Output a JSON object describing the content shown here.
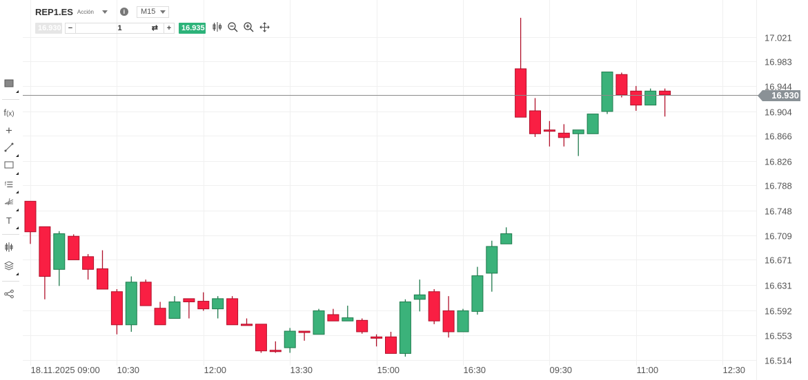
{
  "header": {
    "symbol": "REP1.ES",
    "instrument_type": "Acción",
    "timeframe": "M15"
  },
  "order_bar": {
    "sell_price": "16.930",
    "quantity": "1",
    "buy_price": "16.935",
    "minus": "−",
    "plus": "+"
  },
  "toolbar_icons": [
    "candlestick-type-icon",
    "zoom-out-icon",
    "zoom-in-icon",
    "pan-icon"
  ],
  "left_tools": [
    "chart-background-icon",
    "function-icon",
    "crosshair-icon",
    "trendline-icon",
    "rectangle-icon",
    "fibonacci-icon",
    "pitchfork-icon",
    "text-icon",
    "indicators-icon",
    "layers-icon",
    "share-icon"
  ],
  "colors": {
    "up": "#3bb27a",
    "down": "#f91f43",
    "up_border": "#1e7a4c",
    "down_border": "#b0102a",
    "last_price": "#8a9196",
    "buy": "#2db37a"
  },
  "chart_data": {
    "type": "candlestick",
    "interval": "M15",
    "ylim": [
      16.505,
      17.079
    ],
    "grid": true,
    "last_price": "16.930",
    "y_ticks": [
      "17.021",
      "16.983",
      "16.944",
      "16.904",
      "16.866",
      "16.826",
      "16.788",
      "16.748",
      "16.709",
      "16.671",
      "16.631",
      "16.592",
      "16.553",
      "16.514"
    ],
    "x_ticks": [
      {
        "index": 0,
        "label": "18.11.2025 09:00"
      },
      {
        "index": 6,
        "label": "10:30"
      },
      {
        "index": 12,
        "label": "12:00"
      },
      {
        "index": 18,
        "label": "13:30"
      },
      {
        "index": 24,
        "label": "15:00"
      },
      {
        "index": 30,
        "label": "16:30"
      },
      {
        "index": 36,
        "label": "09:30"
      },
      {
        "index": 42,
        "label": "11:00"
      },
      {
        "index": 48,
        "label": "12:30"
      }
    ],
    "ohlc": [
      [
        16.763,
        16.763,
        16.696,
        16.715
      ],
      [
        16.723,
        16.723,
        16.609,
        16.645
      ],
      [
        16.656,
        16.716,
        16.63,
        16.712
      ],
      [
        16.708,
        16.711,
        16.671,
        16.671
      ],
      [
        16.676,
        16.68,
        16.64,
        16.656
      ],
      [
        16.657,
        16.686,
        16.625,
        16.625
      ],
      [
        16.621,
        16.625,
        16.554,
        16.569
      ],
      [
        16.569,
        16.645,
        16.558,
        16.636
      ],
      [
        16.636,
        16.64,
        16.599,
        16.599
      ],
      [
        16.595,
        16.605,
        16.569,
        16.569
      ],
      [
        16.579,
        16.614,
        16.579,
        16.605
      ],
      [
        16.61,
        16.61,
        16.579,
        16.605
      ],
      [
        16.606,
        16.62,
        16.591,
        16.594
      ],
      [
        16.594,
        16.614,
        16.579,
        16.61
      ],
      [
        16.61,
        16.614,
        16.569,
        16.569
      ],
      [
        16.57,
        16.579,
        16.568,
        16.568
      ],
      [
        16.57,
        16.57,
        16.525,
        16.528
      ],
      [
        16.529,
        16.543,
        16.525,
        16.527
      ],
      [
        16.533,
        16.564,
        16.525,
        16.559
      ],
      [
        16.559,
        16.559,
        16.544,
        16.557
      ],
      [
        16.554,
        16.594,
        16.554,
        16.591
      ],
      [
        16.585,
        16.594,
        16.575,
        16.575
      ],
      [
        16.575,
        16.599,
        16.575,
        16.58
      ],
      [
        16.576,
        16.579,
        16.555,
        16.558
      ],
      [
        16.55,
        16.554,
        16.535,
        16.548
      ],
      [
        16.55,
        16.558,
        16.524,
        16.524
      ],
      [
        16.524,
        16.609,
        16.519,
        16.605
      ],
      [
        16.609,
        16.64,
        16.59,
        16.616
      ],
      [
        16.621,
        16.625,
        16.57,
        16.575
      ],
      [
        16.591,
        16.614,
        16.549,
        16.558
      ],
      [
        16.558,
        16.594,
        16.558,
        16.591
      ],
      [
        16.59,
        16.66,
        16.585,
        16.646
      ],
      [
        16.65,
        16.701,
        16.621,
        16.692
      ],
      [
        16.696,
        16.722,
        16.696,
        16.712
      ],
      [
        16.971,
        17.051,
        16.895,
        16.895
      ],
      [
        16.905,
        16.925,
        16.864,
        16.869
      ],
      [
        16.875,
        16.889,
        16.849,
        16.873
      ],
      [
        16.87,
        16.884,
        16.849,
        16.863
      ],
      [
        16.869,
        16.875,
        16.834,
        16.875
      ],
      [
        16.869,
        16.9,
        16.869,
        16.9
      ],
      [
        16.904,
        16.966,
        16.9,
        16.966
      ],
      [
        16.962,
        16.965,
        16.926,
        16.93
      ],
      [
        16.936,
        16.944,
        16.905,
        16.914
      ],
      [
        16.914,
        16.94,
        16.914,
        16.936
      ],
      [
        16.936,
        16.94,
        16.896,
        16.93
      ]
    ]
  }
}
